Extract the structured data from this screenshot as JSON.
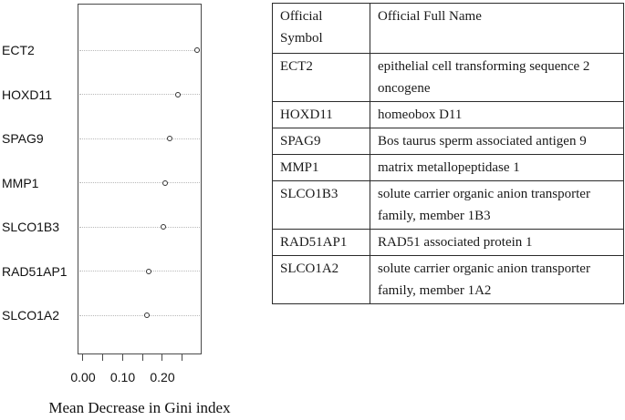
{
  "chart_data": {
    "type": "scatter",
    "subtype": "dotchart",
    "categories": [
      "ECT2",
      "HOXD11",
      "SPAG9",
      "MMP1",
      "SLCO1B3",
      "RAD51AP1",
      "SLCO1A2"
    ],
    "values": [
      0.287,
      0.239,
      0.218,
      0.207,
      0.203,
      0.166,
      0.162
    ],
    "title": "",
    "xlabel": "Mean Decrease in Gini index",
    "ylabel": "",
    "xlim": [
      -0.014,
      0.3
    ],
    "xticks_minor": [
      0,
      0.05,
      0.1,
      0.15,
      0.2,
      0.25
    ],
    "xticks_labeled": [
      0,
      0.1,
      0.2
    ],
    "xtick_labels": [
      "0.00",
      "0.10",
      "0.20"
    ],
    "grid": "horizontal-dotted",
    "legend": "none",
    "marker": "open-circle"
  },
  "table": {
    "headers": {
      "symbol": "Official Symbol",
      "full_name": "Official Full Name"
    },
    "rows": [
      {
        "symbol": "ECT2",
        "full_name": "epithelial cell transforming sequence 2 oncogene"
      },
      {
        "symbol": "HOXD11",
        "full_name": "homeobox D11"
      },
      {
        "symbol": "SPAG9",
        "full_name": "Bos taurus sperm associated antigen 9"
      },
      {
        "symbol": "MMP1",
        "full_name": "matrix metallopeptidase 1"
      },
      {
        "symbol": "SLCO1B3",
        "full_name": "solute carrier organic anion transporter family, member 1B3"
      },
      {
        "symbol": "RAD51AP1",
        "full_name": "RAD51 associated protein 1"
      },
      {
        "symbol": "SLCO1A2",
        "full_name": "solute carrier organic anion transporter family, member 1A2"
      }
    ]
  },
  "colors": {
    "plot_border": "#4a4a4a",
    "gridline": "#b9b9b9",
    "marker_stroke": "#333333",
    "table_border": "#2b2b2b",
    "text": "#111111"
  }
}
